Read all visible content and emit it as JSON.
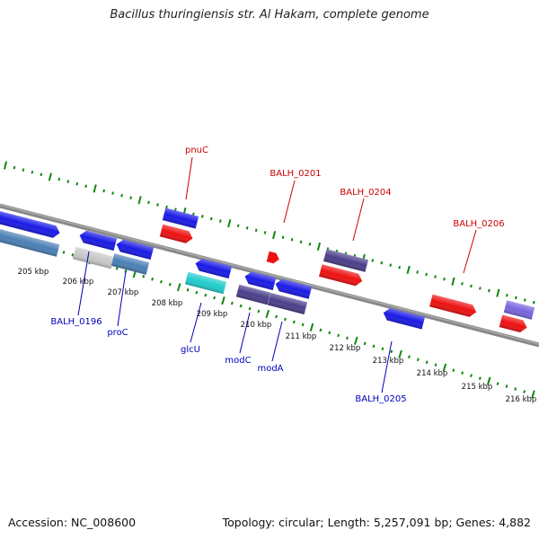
{
  "title": "Bacillus thuringiensis str. Al Hakam, complete genome",
  "footer": {
    "accession": "Accession: NC_008600",
    "summary": "Topology: circular; Length: 5,257,091 bp; Genes: 4,882"
  },
  "colors": {
    "backbone": "#808080",
    "tick": "#118811",
    "label_forward": "#cc0000",
    "label_reverse": "#0000bb",
    "gene_blue": "#1a1ae6",
    "gene_red": "#ee1111",
    "gene_purple": "#4a3f8a",
    "gene_steel": "#4a7fb5",
    "gene_grey": "#c8c8c8",
    "gene_cyan": "#22cccc",
    "gene_lavender": "#7766dd"
  },
  "scale_labels": [
    "205 kbp",
    "206 kbp",
    "207 kbp",
    "208 kbp",
    "209 kbp",
    "210 kbp",
    "211 kbp",
    "212 kbp",
    "213 kbp",
    "214 kbp",
    "215 kbp",
    "216 kbp"
  ],
  "gene_labels": {
    "top": [
      "pnuC",
      "BALH_0201",
      "BALH_0204",
      "BALH_0206"
    ],
    "bottom": [
      "BALH_0196",
      "proC",
      "glcU",
      "modC",
      "modA",
      "BALH_0205"
    ]
  }
}
